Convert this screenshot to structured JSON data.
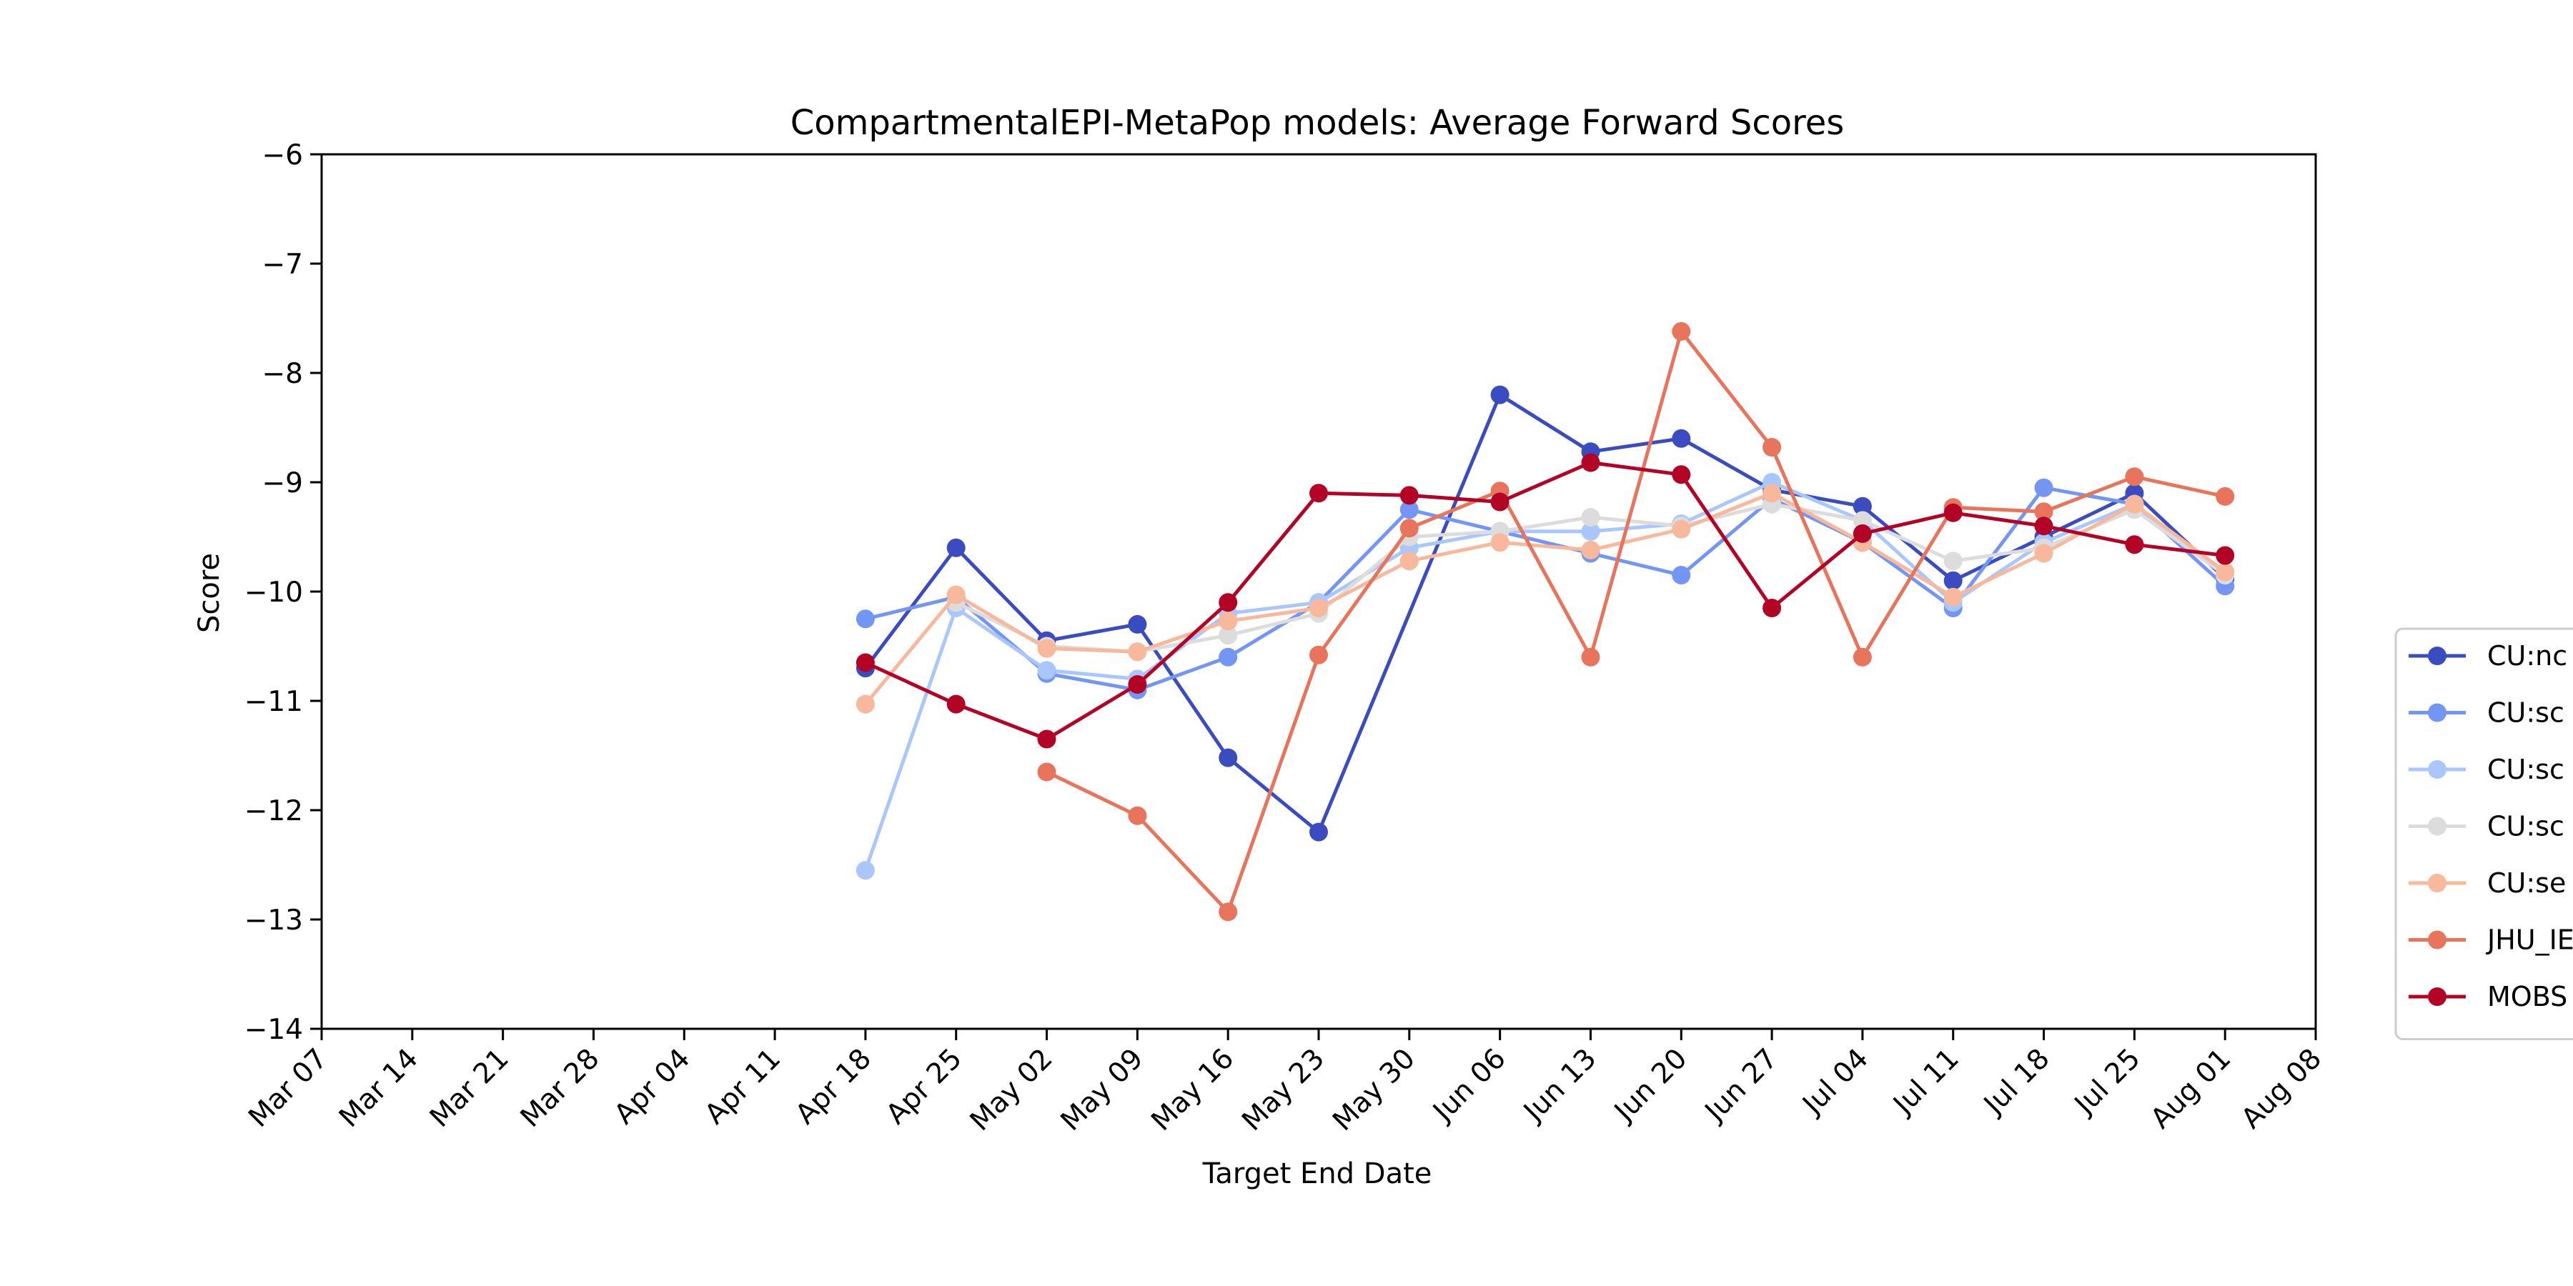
{
  "chart_data": {
    "type": "line",
    "title": "CompartmentalEPI-MetaPop models: Average Forward Scores",
    "xlabel": "Target End Date",
    "ylabel": "Score",
    "ylim": [
      -14,
      -6
    ],
    "yticks": [
      -6,
      -7,
      -8,
      -9,
      -10,
      -11,
      -12,
      -13,
      -14
    ],
    "ytick_labels": [
      "−6",
      "−7",
      "−8",
      "−9",
      "−10",
      "−11",
      "−12",
      "−13",
      "−14"
    ],
    "xtick_labels": [
      "Mar 07",
      "Mar 14",
      "Mar 21",
      "Mar 28",
      "Apr 04",
      "Apr 11",
      "Apr 18",
      "Apr 25",
      "May 02",
      "May 09",
      "May 16",
      "May 23",
      "May 30",
      "Jun 06",
      "Jun 13",
      "Jun 20",
      "Jun 27",
      "Jul 04",
      "Jul 11",
      "Jul 18",
      "Jul 25",
      "Aug 01",
      "Aug 08"
    ],
    "grid": false,
    "legend_position": "right, partially cut off",
    "series": [
      {
        "name": "CU:nc",
        "color": "#3b4cc0",
        "x": [
          "Apr 18",
          "Apr 25",
          "May 02",
          "May 09",
          "May 16",
          "May 23",
          "Jun 06",
          "Jun 13",
          "Jun 20",
          "Jun 27",
          "Jul 04",
          "Jul 11",
          "Jul 18",
          "Jul 25",
          "Aug 01"
        ],
        "values": [
          -10.7,
          -9.6,
          -10.45,
          -10.3,
          -11.52,
          -12.2,
          -8.2,
          -8.72,
          -8.6,
          -9.07,
          -9.22,
          -9.9,
          -9.5,
          -9.1,
          -9.88
        ]
      },
      {
        "name": "CU:sc",
        "color": "#7396f5",
        "x": [
          "Apr 18",
          "Apr 25",
          "May 02",
          "May 09",
          "May 16",
          "May 23",
          "May 30",
          "Jun 06",
          "Jun 13",
          "Jun 20",
          "Jun 27",
          "Jul 04",
          "Jul 11",
          "Jul 18",
          "Jul 25",
          "Aug 01"
        ],
        "values": [
          -10.25,
          -10.05,
          -10.75,
          -10.9,
          -10.6,
          -10.1,
          -9.25,
          -9.45,
          -9.65,
          -9.85,
          -9.15,
          -9.55,
          -10.15,
          -9.05,
          -9.2,
          -9.95
        ]
      },
      {
        "name": "CU:sc",
        "color": "#aac7fd",
        "x": [
          "Apr 18",
          "Apr 25",
          "May 02",
          "May 09",
          "May 16",
          "May 23",
          "May 30",
          "Jun 06",
          "Jun 13",
          "Jun 20",
          "Jun 27",
          "Jul 04",
          "Jul 11",
          "Jul 18",
          "Jul 25",
          "Aug 01"
        ],
        "values": [
          -12.55,
          -10.15,
          -10.72,
          -10.8,
          -10.2,
          -10.1,
          -9.6,
          -9.45,
          -9.45,
          -9.38,
          -9.0,
          -9.35,
          -10.1,
          -9.55,
          -9.2,
          -9.85
        ]
      },
      {
        "name": "CU:sc",
        "color": "#dddcdc",
        "x": [
          "Apr 25",
          "May 02",
          "May 09",
          "May 16",
          "May 23",
          "May 30",
          "Jun 06",
          "Jun 13",
          "Jun 20",
          "Jun 27",
          "Jul 04",
          "Jul 11",
          "Jul 18",
          "Jul 25",
          "Aug 01"
        ],
        "values": [
          -10.1,
          -10.5,
          -10.55,
          -10.4,
          -10.2,
          -9.5,
          -9.45,
          -9.32,
          -9.4,
          -9.2,
          -9.35,
          -9.72,
          -9.6,
          -9.25,
          -9.85
        ]
      },
      {
        "name": "CU:se",
        "color": "#f7b89c",
        "x": [
          "Apr 18",
          "Apr 25",
          "May 02",
          "May 09",
          "May 16",
          "May 23",
          "May 30",
          "Jun 06",
          "Jun 13",
          "Jun 20",
          "Jun 27",
          "Jul 04",
          "Jul 11",
          "Jul 18",
          "Jul 25",
          "Aug 01"
        ],
        "values": [
          -11.03,
          -10.03,
          -10.52,
          -10.55,
          -10.27,
          -10.15,
          -9.72,
          -9.55,
          -9.62,
          -9.43,
          -9.1,
          -9.55,
          -10.05,
          -9.65,
          -9.2,
          -9.82
        ]
      },
      {
        "name": "JHU_IE",
        "color": "#e7745b",
        "x": [
          "May 02",
          "May 09",
          "May 16",
          "May 23",
          "May 30",
          "Jun 06",
          "Jun 13",
          "Jun 20",
          "Jun 27",
          "Jul 04",
          "Jul 11",
          "Jul 18",
          "Jul 25",
          "Aug 01"
        ],
        "values": [
          -11.65,
          -12.05,
          -12.93,
          -10.58,
          -9.42,
          -9.08,
          -10.6,
          -7.62,
          -8.68,
          -10.6,
          -9.23,
          -9.27,
          -8.95,
          -9.13
        ]
      },
      {
        "name": "MOBS",
        "color": "#b40426",
        "x": [
          "Apr 18",
          "Apr 25",
          "May 02",
          "May 09",
          "May 16",
          "May 23",
          "May 30",
          "Jun 06",
          "Jun 13",
          "Jun 20",
          "Jun 27",
          "Jul 04",
          "Jul 11",
          "Jul 18",
          "Jul 25",
          "Aug 01"
        ],
        "values": [
          -10.65,
          -11.03,
          -11.35,
          -10.85,
          -10.1,
          -9.1,
          -9.12,
          -9.18,
          -8.82,
          -8.93,
          -10.15,
          -9.47,
          -9.28,
          -9.4,
          -9.57,
          -9.67
        ]
      }
    ]
  }
}
